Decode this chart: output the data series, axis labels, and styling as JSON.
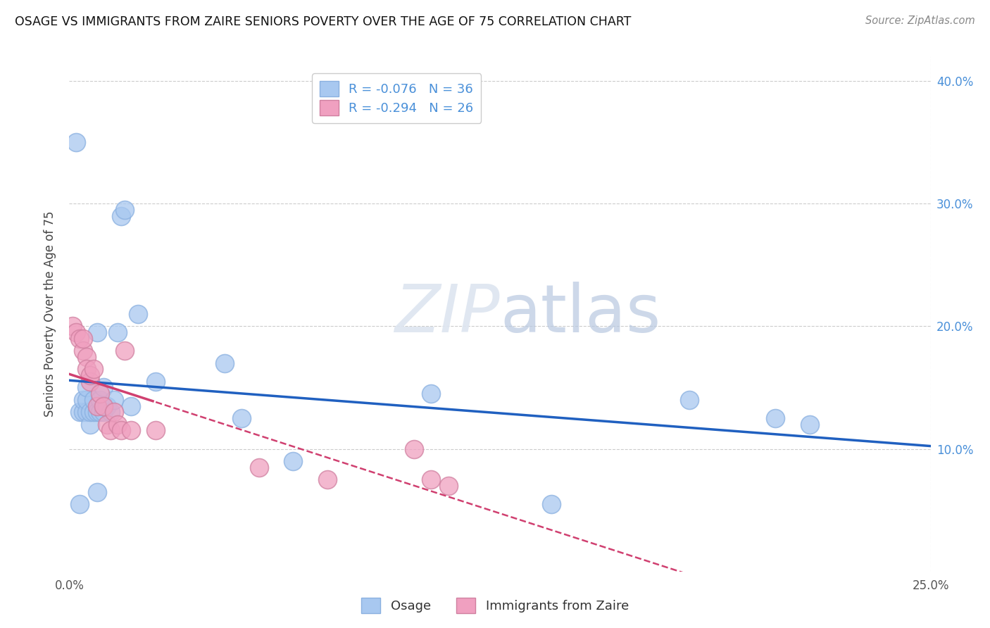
{
  "title": "OSAGE VS IMMIGRANTS FROM ZAIRE SENIORS POVERTY OVER THE AGE OF 75 CORRELATION CHART",
  "source": "Source: ZipAtlas.com",
  "ylabel": "Seniors Poverty Over the Age of 75",
  "legend_labels": [
    "Osage",
    "Immigrants from Zaire"
  ],
  "R_osage": -0.076,
  "N_osage": 36,
  "R_zaire": -0.294,
  "N_zaire": 26,
  "osage_color": "#a8c8f0",
  "zaire_color": "#f0a0c0",
  "osage_line_color": "#2060c0",
  "zaire_line_color": "#d04070",
  "background_color": "#ffffff",
  "watermark_color": "#dde5f0",
  "xlim": [
    0.0,
    0.25
  ],
  "ylim": [
    0.0,
    0.42
  ],
  "osage_x": [
    0.002,
    0.003,
    0.004,
    0.004,
    0.005,
    0.005,
    0.005,
    0.006,
    0.006,
    0.007,
    0.007,
    0.008,
    0.008,
    0.009,
    0.009,
    0.01,
    0.01,
    0.011,
    0.012,
    0.013,
    0.014,
    0.015,
    0.016,
    0.018,
    0.02,
    0.025,
    0.045,
    0.05,
    0.065,
    0.105,
    0.14,
    0.18,
    0.205,
    0.215,
    0.003,
    0.008
  ],
  "osage_y": [
    0.35,
    0.13,
    0.13,
    0.14,
    0.13,
    0.14,
    0.15,
    0.12,
    0.13,
    0.13,
    0.14,
    0.13,
    0.195,
    0.13,
    0.14,
    0.13,
    0.15,
    0.135,
    0.13,
    0.14,
    0.195,
    0.29,
    0.295,
    0.135,
    0.21,
    0.155,
    0.17,
    0.125,
    0.09,
    0.145,
    0.055,
    0.14,
    0.125,
    0.12,
    0.055,
    0.065
  ],
  "zaire_x": [
    0.001,
    0.002,
    0.003,
    0.004,
    0.004,
    0.005,
    0.005,
    0.006,
    0.006,
    0.007,
    0.008,
    0.009,
    0.01,
    0.011,
    0.012,
    0.013,
    0.014,
    0.015,
    0.016,
    0.018,
    0.025,
    0.055,
    0.075,
    0.1,
    0.105,
    0.11
  ],
  "zaire_y": [
    0.2,
    0.195,
    0.19,
    0.18,
    0.19,
    0.175,
    0.165,
    0.155,
    0.16,
    0.165,
    0.135,
    0.145,
    0.135,
    0.12,
    0.115,
    0.13,
    0.12,
    0.115,
    0.18,
    0.115,
    0.115,
    0.085,
    0.075,
    0.1,
    0.075,
    0.07
  ]
}
